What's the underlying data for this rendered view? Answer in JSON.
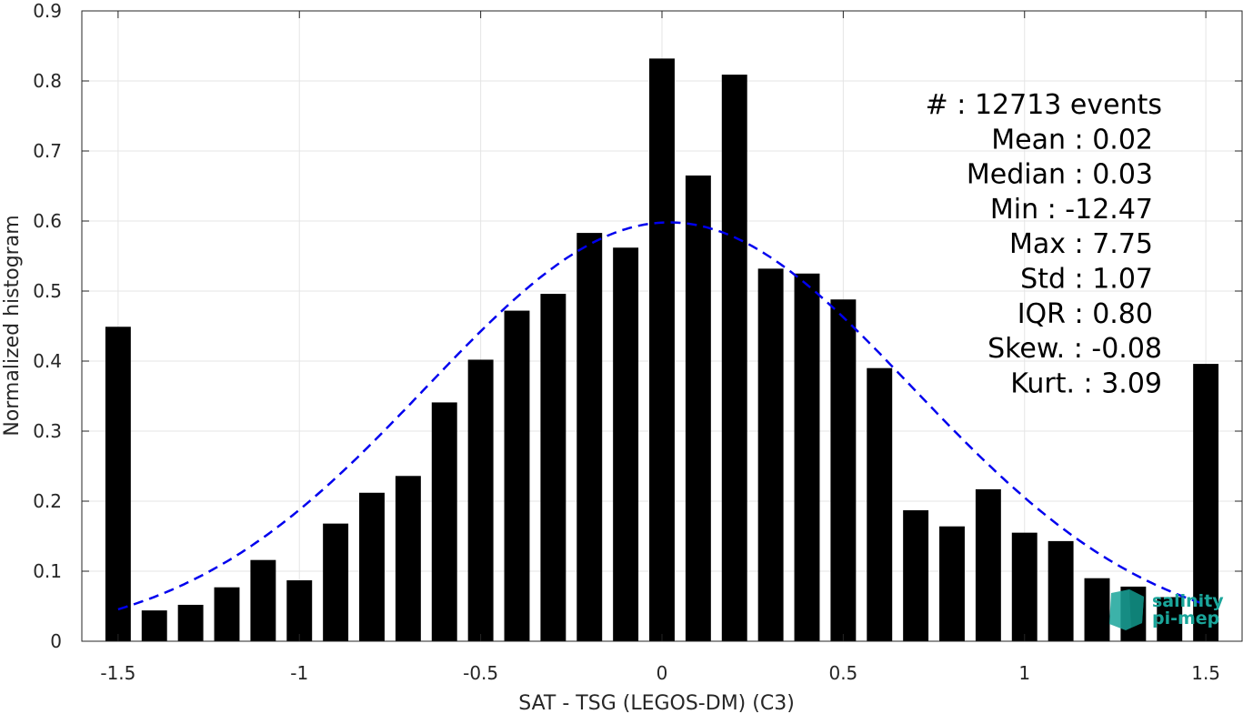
{
  "chart_data": {
    "type": "bar",
    "xlabel": "SAT - TSG (LEGOS-DM) (C3)",
    "ylabel": "Normalized histogram",
    "xlim": [
      -1.6,
      1.6
    ],
    "ylim": [
      0,
      0.9
    ],
    "xticks": [
      -1.5,
      -1,
      -0.5,
      0,
      0.5,
      1,
      1.5
    ],
    "xtick_labels": [
      "-1.5",
      "-1",
      "-0.5",
      "0",
      "0.5",
      "1",
      "1.5"
    ],
    "yticks": [
      0,
      0.1,
      0.2,
      0.3,
      0.4,
      0.5,
      0.6,
      0.7,
      0.8,
      0.9
    ],
    "ytick_labels": [
      "0",
      "0.1",
      "0.2",
      "0.3",
      "0.4",
      "0.5",
      "0.6",
      "0.7",
      "0.8",
      "0.9"
    ],
    "grid": true,
    "bar_color": "#000000",
    "bar_width": 0.07,
    "x": [
      -1.5,
      -1.4,
      -1.3,
      -1.2,
      -1.1,
      -1.0,
      -0.9,
      -0.8,
      -0.7,
      -0.6,
      -0.5,
      -0.4,
      -0.3,
      -0.2,
      -0.1,
      0.0,
      0.1,
      0.2,
      0.3,
      0.4,
      0.5,
      0.6,
      0.7,
      0.8,
      0.9,
      1.0,
      1.1,
      1.2,
      1.3,
      1.4,
      1.5
    ],
    "values": [
      0.449,
      0.044,
      0.052,
      0.077,
      0.116,
      0.087,
      0.168,
      0.212,
      0.236,
      0.341,
      0.402,
      0.472,
      0.496,
      0.583,
      0.562,
      0.832,
      0.665,
      0.809,
      0.532,
      0.525,
      0.488,
      0.39,
      0.187,
      0.164,
      0.217,
      0.155,
      0.143,
      0.09,
      0.078,
      0.063,
      0.396
    ],
    "fit_curve": {
      "type": "gaussian",
      "color": "#0000ee",
      "style": "dashed",
      "mean": 0.02,
      "std": 0.67,
      "peak": 0.598,
      "x_range": [
        -1.5,
        1.5
      ]
    },
    "annotations": [
      "#  : 12713 events",
      "Mean : 0.02",
      "Median : 0.03",
      "Min : -12.47",
      "Max : 7.75",
      "Std : 1.07",
      "IQR : 0.80",
      "Skew. : -0.08",
      "Kurt. : 3.09"
    ]
  },
  "logo": {
    "line1": "salinity",
    "line2": "pi-mep",
    "color": "#1aa59a"
  }
}
